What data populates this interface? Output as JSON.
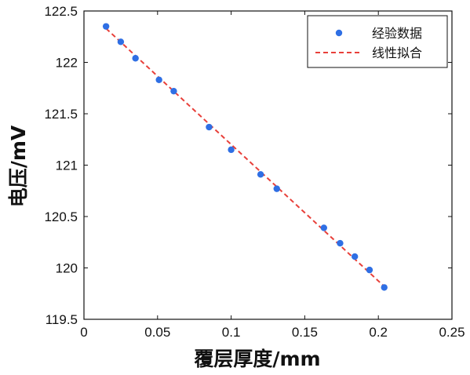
{
  "chart_data": {
    "type": "scatter",
    "xlabel": "覆层厚度/mm",
    "ylabel": "电压/mV",
    "xlim": [
      0,
      0.25
    ],
    "ylim": [
      119.5,
      122.5
    ],
    "xticks": [
      "0",
      "0.05",
      "0.1",
      "0.15",
      "0.2",
      "0.25"
    ],
    "yticks": [
      "119.5",
      "120",
      "120.5",
      "121",
      "121.5",
      "122",
      "122.5"
    ],
    "xtick_values": [
      0,
      0.05,
      0.1,
      0.15,
      0.2,
      0.25
    ],
    "ytick_values": [
      119.5,
      120,
      120.5,
      121,
      121.5,
      122,
      122.5
    ],
    "grid": false,
    "legend_position": "top-right",
    "series": [
      {
        "name": "经验数据",
        "kind": "scatter",
        "color": "#2f6fe4",
        "x": [
          0.015,
          0.025,
          0.035,
          0.051,
          0.061,
          0.085,
          0.1,
          0.12,
          0.131,
          0.163,
          0.174,
          0.184,
          0.194,
          0.204
        ],
        "y": [
          122.35,
          122.2,
          122.04,
          121.83,
          121.72,
          121.37,
          121.15,
          120.91,
          120.77,
          120.39,
          120.24,
          120.11,
          119.98,
          119.81
        ]
      },
      {
        "name": "线性拟合",
        "kind": "line",
        "style": "dashed",
        "color": "#e8403a",
        "x": [
          0.015,
          0.204
        ],
        "y": [
          122.33,
          119.82
        ]
      }
    ]
  }
}
